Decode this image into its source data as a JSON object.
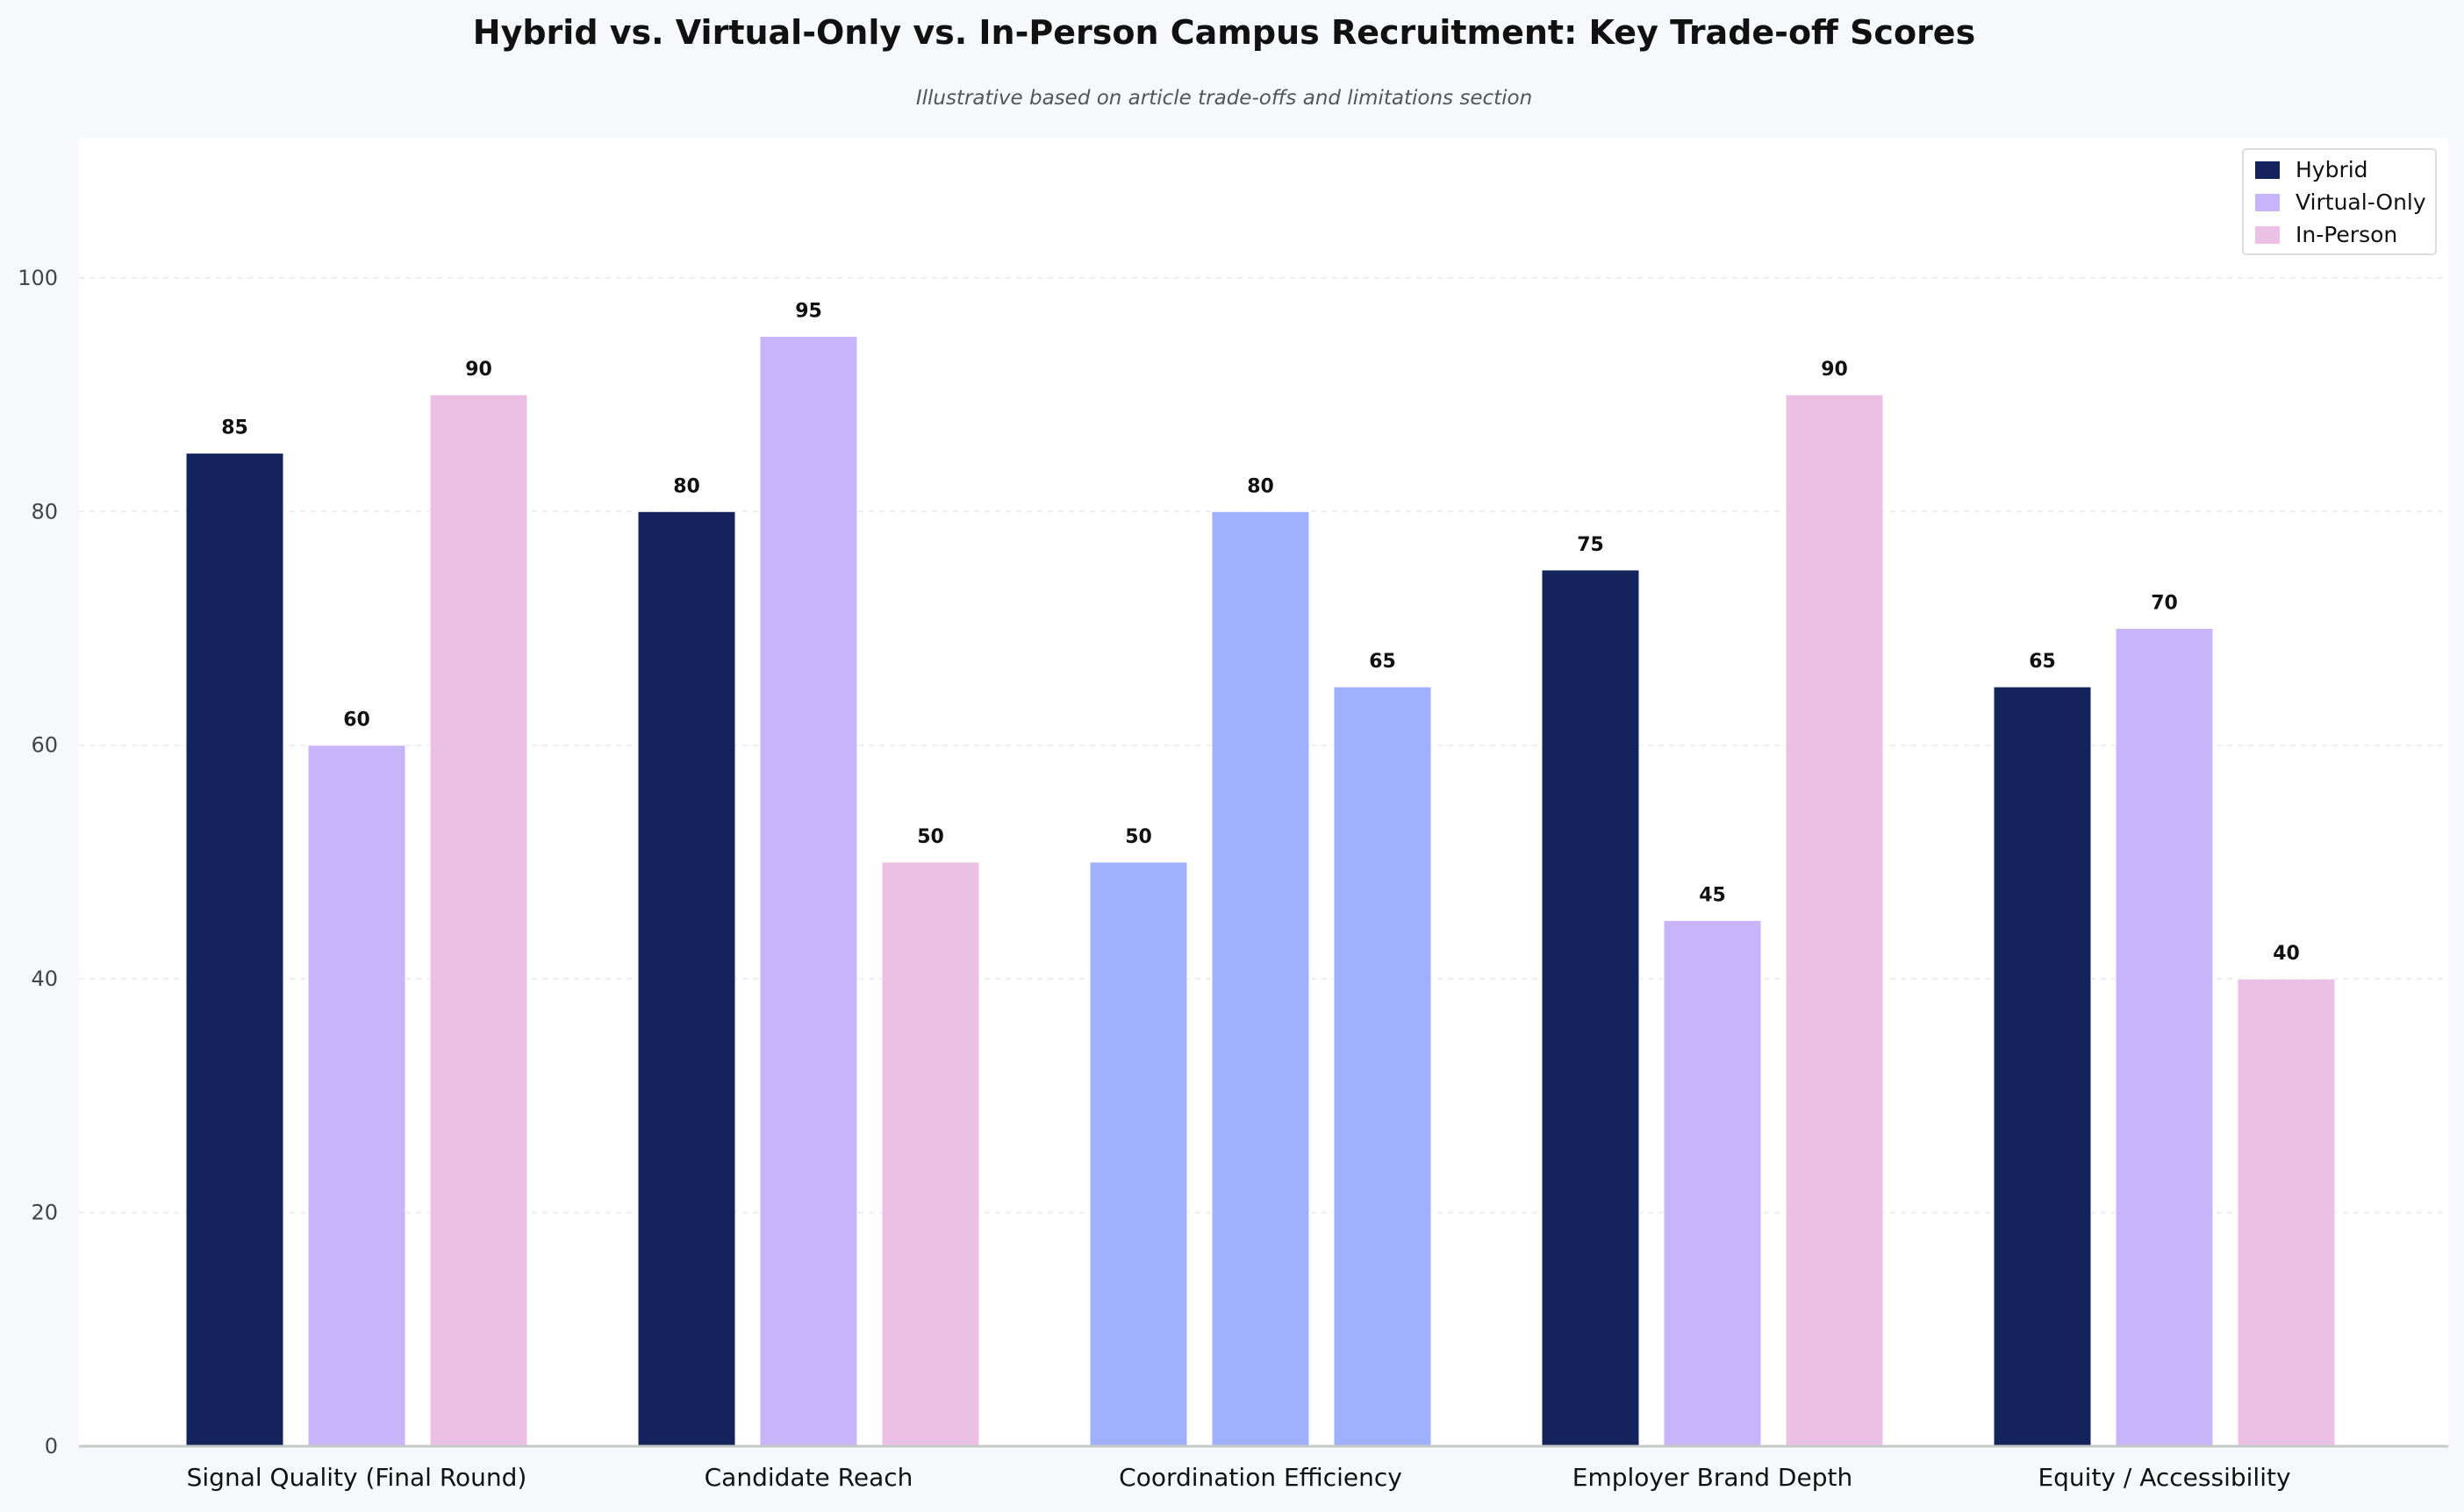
{
  "chart_data": {
    "type": "bar",
    "title": "Hybrid vs. Virtual-Only vs. In-Person Campus Recruitment: Key Trade-off Scores",
    "subtitle": "Illustrative based on article trade-offs and limitations section",
    "xlabel": "",
    "ylabel": "",
    "ylim": [
      0,
      112
    ],
    "yticks": [
      "0",
      "20",
      "40",
      "60",
      "80",
      "100"
    ],
    "grid": "y",
    "legend_position": "top-right",
    "categories": [
      "Signal Quality (Final Round)",
      "Candidate Reach",
      "Coordination Efficiency",
      "Employer Brand Depth",
      "Equity / Accessibility"
    ],
    "series": [
      {
        "name": "Hybrid",
        "color": "#14235c",
        "values": [
          85,
          80,
          50,
          75,
          65
        ]
      },
      {
        "name": "Virtual-Only",
        "color": "#c8b4f8",
        "values": [
          60,
          95,
          80,
          45,
          70
        ]
      },
      {
        "name": "In-Person",
        "color": "#ecc0e4",
        "values": [
          90,
          50,
          65,
          90,
          40
        ]
      }
    ],
    "bar_colors_override": {
      "Coordination Efficiency": "#9fb0fc"
    },
    "background_color": "#f7f8fc",
    "plot_background_color": "#ffffff"
  }
}
